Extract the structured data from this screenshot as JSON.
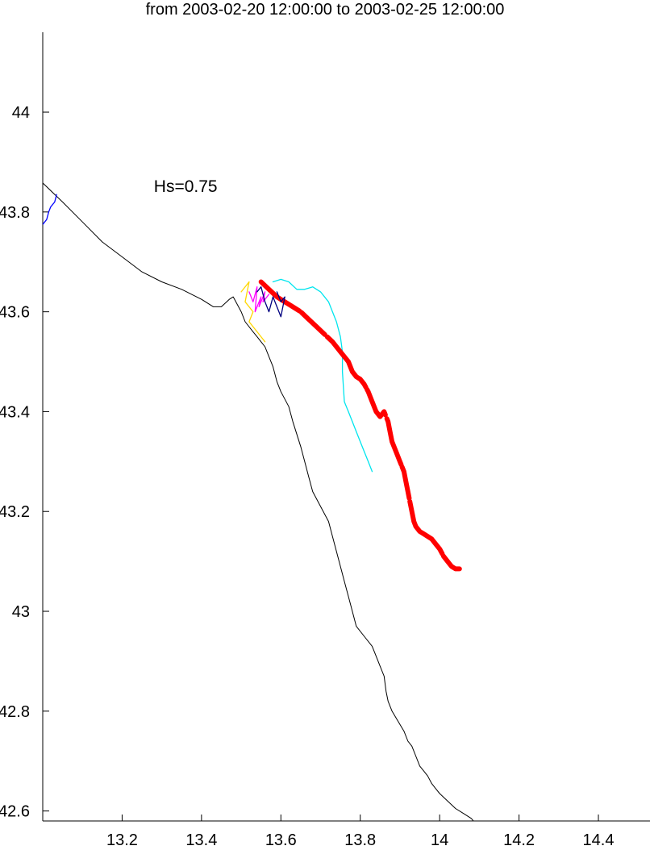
{
  "chart_data": {
    "type": "line",
    "title": "from 2003-02-20 12:00:00 to 2003-02-25 12:00:00",
    "xlabel": "",
    "ylabel": "",
    "xlim": [
      13.0,
      14.53
    ],
    "ylim": [
      42.58,
      44.16
    ],
    "grid": false,
    "x_ticks": [
      "13.2",
      "13.4",
      "13.6",
      "13.8",
      "14",
      "14.2",
      "14.4"
    ],
    "y_ticks": [
      "42.6",
      "42.8",
      "43",
      "43.2",
      "43.4",
      "43.6",
      "43.8",
      "44"
    ],
    "annotations": [
      {
        "text": "Hs=0.75",
        "x": 13.28,
        "y": 43.84
      }
    ],
    "series": [
      {
        "color": "#000000",
        "style": "coastline",
        "x": [
          13.0,
          13.05,
          13.1,
          13.15,
          13.2,
          13.25,
          13.3,
          13.35,
          13.4,
          13.43,
          13.45,
          13.47,
          13.48,
          13.5,
          13.51,
          13.53,
          13.54,
          13.55,
          13.56,
          13.57,
          13.58,
          13.59,
          13.6,
          13.62,
          13.63,
          13.64,
          13.65,
          13.66,
          13.67,
          13.68,
          13.7,
          13.72,
          13.73,
          13.74,
          13.75,
          13.76,
          13.77,
          13.78,
          13.79,
          13.81,
          13.83,
          13.84,
          13.85,
          13.86,
          13.865,
          13.87,
          13.88,
          13.895,
          13.91,
          13.92,
          13.93,
          13.94,
          13.95,
          13.96,
          13.97,
          13.98,
          13.99,
          14.0,
          14.02,
          14.04,
          14.06,
          14.08,
          14.09
        ],
        "y": [
          43.858,
          43.82,
          43.78,
          43.74,
          43.71,
          43.68,
          43.66,
          43.645,
          43.625,
          43.61,
          43.61,
          43.625,
          43.63,
          43.6,
          43.58,
          43.56,
          43.55,
          43.54,
          43.53,
          43.51,
          43.49,
          43.46,
          43.44,
          43.41,
          43.38,
          43.355,
          43.33,
          43.3,
          43.27,
          43.24,
          43.21,
          43.18,
          43.15,
          43.12,
          43.09,
          43.06,
          43.03,
          43.0,
          42.97,
          42.95,
          42.93,
          42.91,
          42.89,
          42.87,
          42.84,
          42.82,
          42.8,
          42.78,
          42.76,
          42.74,
          42.73,
          42.71,
          42.69,
          42.68,
          42.67,
          42.655,
          42.645,
          42.635,
          42.62,
          42.605,
          42.595,
          42.585,
          42.575
        ]
      },
      {
        "color": "#0000ff",
        "style": "thin",
        "x": [
          13.0,
          13.01,
          13.015,
          13.02,
          13.03,
          13.035
        ],
        "y": [
          43.775,
          43.785,
          43.8,
          43.81,
          43.82,
          43.835
        ]
      },
      {
        "color": "#00e5ee",
        "style": "thin",
        "x": [
          13.58,
          13.6,
          13.62,
          13.64,
          13.66,
          13.68,
          13.7,
          13.72,
          13.73,
          13.74,
          13.75,
          13.755,
          13.755,
          13.76,
          13.77,
          13.78,
          13.79,
          13.8,
          13.81,
          13.82,
          13.83
        ],
        "y": [
          43.66,
          43.665,
          43.66,
          43.645,
          43.645,
          43.65,
          43.64,
          43.62,
          43.6,
          43.58,
          43.55,
          43.52,
          43.48,
          43.42,
          43.4,
          43.38,
          43.36,
          43.34,
          43.32,
          43.3,
          43.28
        ]
      },
      {
        "color": "#ff0000",
        "style": "thick",
        "x": [
          13.55,
          13.57,
          13.59,
          13.61,
          13.63,
          13.65,
          13.67,
          13.69,
          13.71,
          13.73,
          13.75,
          13.77,
          13.78,
          13.79,
          13.8,
          13.81,
          13.82,
          13.83,
          13.84,
          13.85,
          13.86,
          13.865,
          13.87,
          13.875,
          13.88,
          13.89,
          13.9,
          13.91,
          13.915,
          13.92,
          13.925,
          13.93,
          13.935,
          13.94,
          13.95,
          13.96,
          13.97,
          13.98,
          13.99,
          14.0,
          14.01,
          14.02,
          14.03,
          14.04,
          14.05
        ],
        "y": [
          43.66,
          43.645,
          43.63,
          43.62,
          43.61,
          43.6,
          43.585,
          43.57,
          43.555,
          43.54,
          43.52,
          43.5,
          43.48,
          43.47,
          43.465,
          43.455,
          43.44,
          43.42,
          43.4,
          43.39,
          43.4,
          43.39,
          43.38,
          43.36,
          43.34,
          43.32,
          43.3,
          43.28,
          43.26,
          43.24,
          43.22,
          43.2,
          43.18,
          43.17,
          43.16,
          43.155,
          43.15,
          43.145,
          43.135,
          43.125,
          43.11,
          43.1,
          43.09,
          43.085,
          43.085
        ]
      },
      {
        "color": "#ff00ff",
        "style": "thin",
        "x": [
          13.52,
          13.53,
          13.54,
          13.535,
          13.55,
          13.545,
          13.56,
          13.555,
          13.57
        ],
        "y": [
          43.64,
          43.62,
          43.65,
          43.6,
          43.63,
          43.61,
          43.64,
          43.62,
          43.635
        ]
      },
      {
        "color": "#ffd700",
        "style": "thin",
        "x": [
          13.5,
          13.52,
          13.51,
          13.53,
          13.52,
          13.54,
          13.55,
          13.56
        ],
        "y": [
          43.64,
          43.66,
          43.62,
          43.6,
          43.58,
          43.56,
          43.55,
          43.54
        ]
      },
      {
        "color": "#000080",
        "style": "thin",
        "x": [
          13.54,
          13.55,
          13.56,
          13.57,
          13.58,
          13.59,
          13.6,
          13.61,
          13.6,
          13.59
        ],
        "y": [
          43.64,
          43.65,
          43.62,
          43.6,
          43.63,
          43.61,
          43.59,
          43.63,
          43.62,
          43.64
        ]
      }
    ]
  }
}
